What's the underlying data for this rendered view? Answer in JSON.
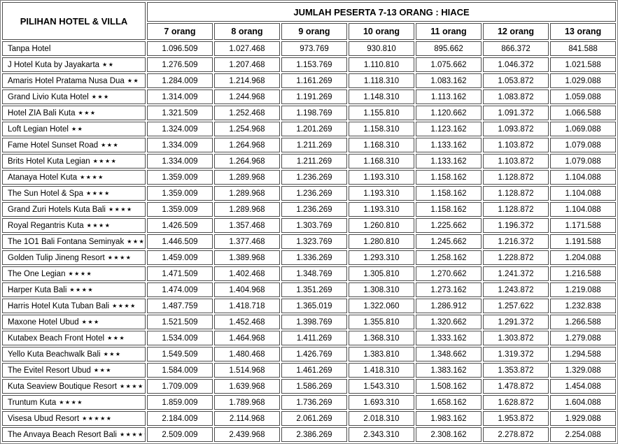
{
  "table": {
    "hotel_column_header": "PILIHAN HOTEL & VILLA",
    "group_header": "JUMLAH PESERTA 7-13 ORANG : HIACE",
    "person_columns": [
      "7 orang",
      "8 orang",
      "9 orang",
      "10 orang",
      "11 orang",
      "12 orang",
      "13 orang"
    ],
    "rows": [
      {
        "name": "Tanpa Hotel",
        "stars": "",
        "prices": [
          "1.096.509",
          "1.027.468",
          "973.769",
          "930.810",
          "895.662",
          "866.372",
          "841.588"
        ]
      },
      {
        "name": "J Hotel Kuta by Jayakarta",
        "stars": "★★",
        "prices": [
          "1.276.509",
          "1.207.468",
          "1.153.769",
          "1.110.810",
          "1.075.662",
          "1.046.372",
          "1.021.588"
        ]
      },
      {
        "name": "Amaris Hotel Pratama Nusa Dua",
        "stars": "★★",
        "prices": [
          "1.284.009",
          "1.214.968",
          "1.161.269",
          "1.118.310",
          "1.083.162",
          "1.053.872",
          "1.029.088"
        ]
      },
      {
        "name": "Grand Livio Kuta Hotel",
        "stars": "★★★",
        "prices": [
          "1.314.009",
          "1.244.968",
          "1.191.269",
          "1.148.310",
          "1.113.162",
          "1.083.872",
          "1.059.088"
        ]
      },
      {
        "name": "Hotel ZIA Bali Kuta",
        "stars": "★★★",
        "prices": [
          "1.321.509",
          "1.252.468",
          "1.198.769",
          "1.155.810",
          "1.120.662",
          "1.091.372",
          "1.066.588"
        ]
      },
      {
        "name": "Loft Legian Hotel",
        "stars": "★★",
        "prices": [
          "1.324.009",
          "1.254.968",
          "1.201.269",
          "1.158.310",
          "1.123.162",
          "1.093.872",
          "1.069.088"
        ]
      },
      {
        "name": "Fame Hotel Sunset Road",
        "stars": "★★★",
        "prices": [
          "1.334.009",
          "1.264.968",
          "1.211.269",
          "1.168.310",
          "1.133.162",
          "1.103.872",
          "1.079.088"
        ]
      },
      {
        "name": "Brits Hotel Kuta Legian",
        "stars": "★★★★",
        "prices": [
          "1.334.009",
          "1.264.968",
          "1.211.269",
          "1.168.310",
          "1.133.162",
          "1.103.872",
          "1.079.088"
        ]
      },
      {
        "name": "Atanaya Hotel Kuta",
        "stars": "★★★★",
        "prices": [
          "1.359.009",
          "1.289.968",
          "1.236.269",
          "1.193.310",
          "1.158.162",
          "1.128.872",
          "1.104.088"
        ]
      },
      {
        "name": "The Sun Hotel & Spa",
        "stars": "★★★★",
        "prices": [
          "1.359.009",
          "1.289.968",
          "1.236.269",
          "1.193.310",
          "1.158.162",
          "1.128.872",
          "1.104.088"
        ]
      },
      {
        "name": "Grand Zuri Hotels Kuta Bali",
        "stars": "★★★★",
        "prices": [
          "1.359.009",
          "1.289.968",
          "1.236.269",
          "1.193.310",
          "1.158.162",
          "1.128.872",
          "1.104.088"
        ]
      },
      {
        "name": "Royal Regantris Kuta",
        "stars": "★★★★",
        "prices": [
          "1.426.509",
          "1.357.468",
          "1.303.769",
          "1.260.810",
          "1.225.662",
          "1.196.372",
          "1.171.588"
        ]
      },
      {
        "name": "The 1O1 Bali Fontana Seminyak",
        "stars": "★★★★",
        "prices": [
          "1.446.509",
          "1.377.468",
          "1.323.769",
          "1.280.810",
          "1.245.662",
          "1.216.372",
          "1.191.588"
        ]
      },
      {
        "name": "Golden Tulip Jineng Resort",
        "stars": "★★★★",
        "prices": [
          "1.459.009",
          "1.389.968",
          "1.336.269",
          "1.293.310",
          "1.258.162",
          "1.228.872",
          "1.204.088"
        ]
      },
      {
        "name": "The One Legian",
        "stars": "★★★★",
        "prices": [
          "1.471.509",
          "1.402.468",
          "1.348.769",
          "1.305.810",
          "1.270.662",
          "1.241.372",
          "1.216.588"
        ]
      },
      {
        "name": "Harper Kuta Bali",
        "stars": "★★★★",
        "prices": [
          "1.474.009",
          "1.404.968",
          "1.351.269",
          "1.308.310",
          "1.273.162",
          "1.243.872",
          "1.219.088"
        ]
      },
      {
        "name": "Harris Hotel Kuta Tuban Bali",
        "stars": "★★★★",
        "prices": [
          "1.487.759",
          "1.418.718",
          "1.365.019",
          "1.322.060",
          "1.286.912",
          "1.257.622",
          "1.232.838"
        ]
      },
      {
        "name": "Maxone Hotel Ubud",
        "stars": "★★★",
        "prices": [
          "1.521.509",
          "1.452.468",
          "1.398.769",
          "1.355.810",
          "1.320.662",
          "1.291.372",
          "1.266.588"
        ]
      },
      {
        "name": "Kutabex Beach Front Hotel",
        "stars": "★★★",
        "prices": [
          "1.534.009",
          "1.464.968",
          "1.411.269",
          "1.368.310",
          "1.333.162",
          "1.303.872",
          "1.279.088"
        ]
      },
      {
        "name": "Yello Kuta Beachwalk Bali",
        "stars": "★★★",
        "prices": [
          "1.549.509",
          "1.480.468",
          "1.426.769",
          "1.383.810",
          "1.348.662",
          "1.319.372",
          "1.294.588"
        ]
      },
      {
        "name": "The Evitel Resort Ubud",
        "stars": "★★★",
        "prices": [
          "1.584.009",
          "1.514.968",
          "1.461.269",
          "1.418.310",
          "1.383.162",
          "1.353.872",
          "1.329.088"
        ]
      },
      {
        "name": "Kuta Seaview Boutique Resort",
        "stars": "★★★★",
        "prices": [
          "1.709.009",
          "1.639.968",
          "1.586.269",
          "1.543.310",
          "1.508.162",
          "1.478.872",
          "1.454.088"
        ]
      },
      {
        "name": "Truntum Kuta",
        "stars": "★★★★",
        "prices": [
          "1.859.009",
          "1.789.968",
          "1.736.269",
          "1.693.310",
          "1.658.162",
          "1.628.872",
          "1.604.088"
        ]
      },
      {
        "name": "Visesa Ubud Resort",
        "stars": "★★★★★",
        "prices": [
          "2.184.009",
          "2.114.968",
          "2.061.269",
          "2.018.310",
          "1.983.162",
          "1.953.872",
          "1.929.088"
        ]
      },
      {
        "name": "The Anvaya Beach Resort Bali",
        "stars": "★★★★★",
        "prices": [
          "2.509.009",
          "2.439.968",
          "2.386.269",
          "2.343.310",
          "2.308.162",
          "2.278.872",
          "2.254.088"
        ]
      }
    ]
  },
  "colors": {
    "cell_border": "#4d4d4d",
    "outer_border": "#7f7f7f",
    "text": "#000000",
    "background": "#ffffff"
  }
}
